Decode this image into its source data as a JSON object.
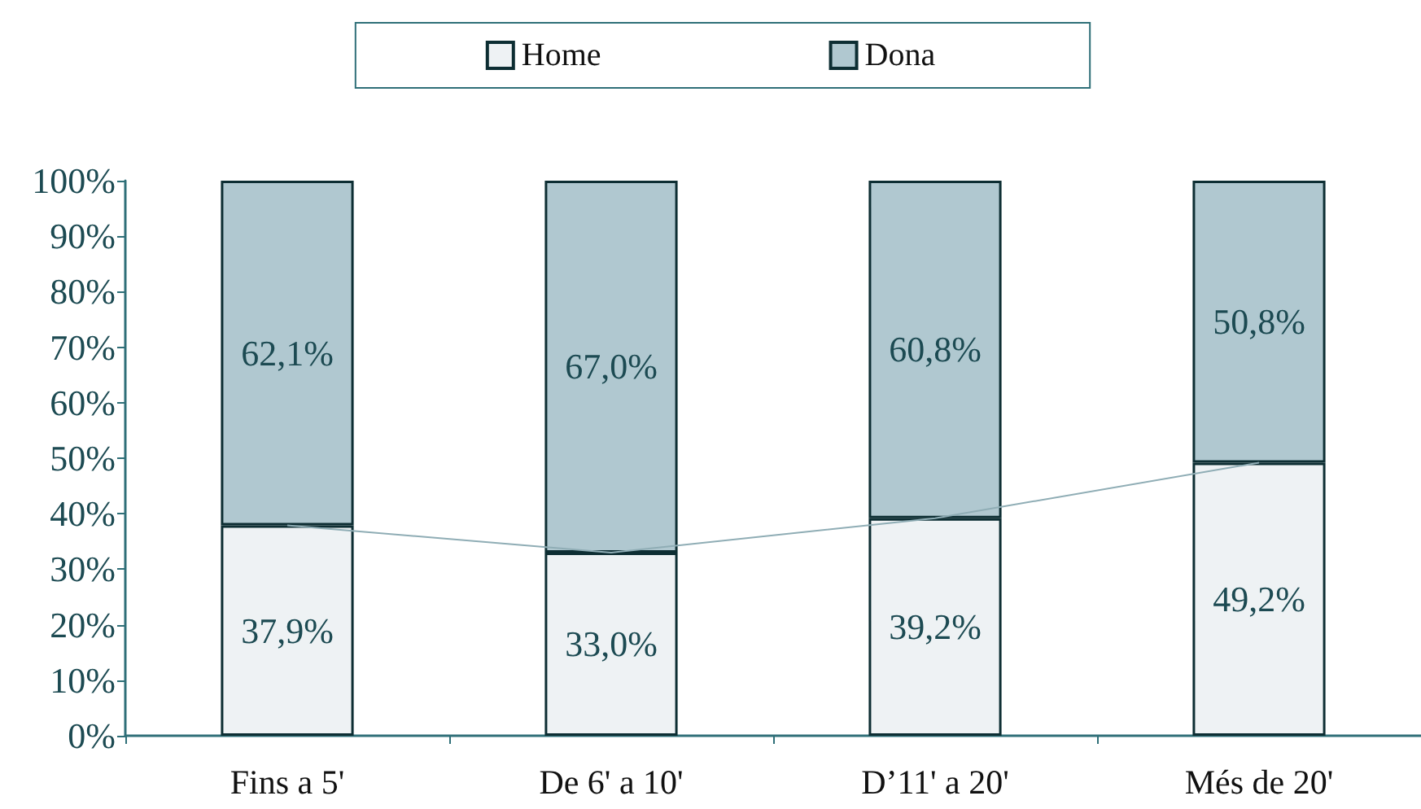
{
  "chart_data": {
    "type": "bar",
    "stacked": true,
    "categories": [
      "Fins a 5'",
      "De 6' a 10'",
      "D’11' a 20'",
      "Més de 20'"
    ],
    "series": [
      {
        "name": "Home",
        "color": "#eef2f4",
        "values": [
          37.9,
          33.0,
          39.2,
          49.2
        ],
        "value_labels": [
          "37,9%",
          "33,0%",
          "39,2%",
          "49,2%"
        ]
      },
      {
        "name": "Dona",
        "color": "#b0c8d0",
        "values": [
          62.1,
          67.0,
          60.8,
          50.8
        ],
        "value_labels": [
          "62,1%",
          "67,0%",
          "60,8%",
          "50,8%"
        ]
      },
      {
        "type": "line",
        "color": "#8fadb5",
        "values": [
          37.9,
          33.0,
          39.2,
          49.2
        ],
        "marker": "none"
      }
    ],
    "ylim": [
      0,
      100
    ],
    "yticks": [
      {
        "value": 0,
        "label": "0%"
      },
      {
        "value": 10,
        "label": "10%"
      },
      {
        "value": 20,
        "label": "20%"
      },
      {
        "value": 30,
        "label": "30%"
      },
      {
        "value": 40,
        "label": "40%"
      },
      {
        "value": 50,
        "label": "50%"
      },
      {
        "value": 60,
        "label": "60%"
      },
      {
        "value": 70,
        "label": "70%"
      },
      {
        "value": 80,
        "label": "80%"
      },
      {
        "value": 90,
        "label": "90%"
      },
      {
        "value": 100,
        "label": "100%"
      }
    ],
    "grid": false,
    "legend": "top"
  }
}
